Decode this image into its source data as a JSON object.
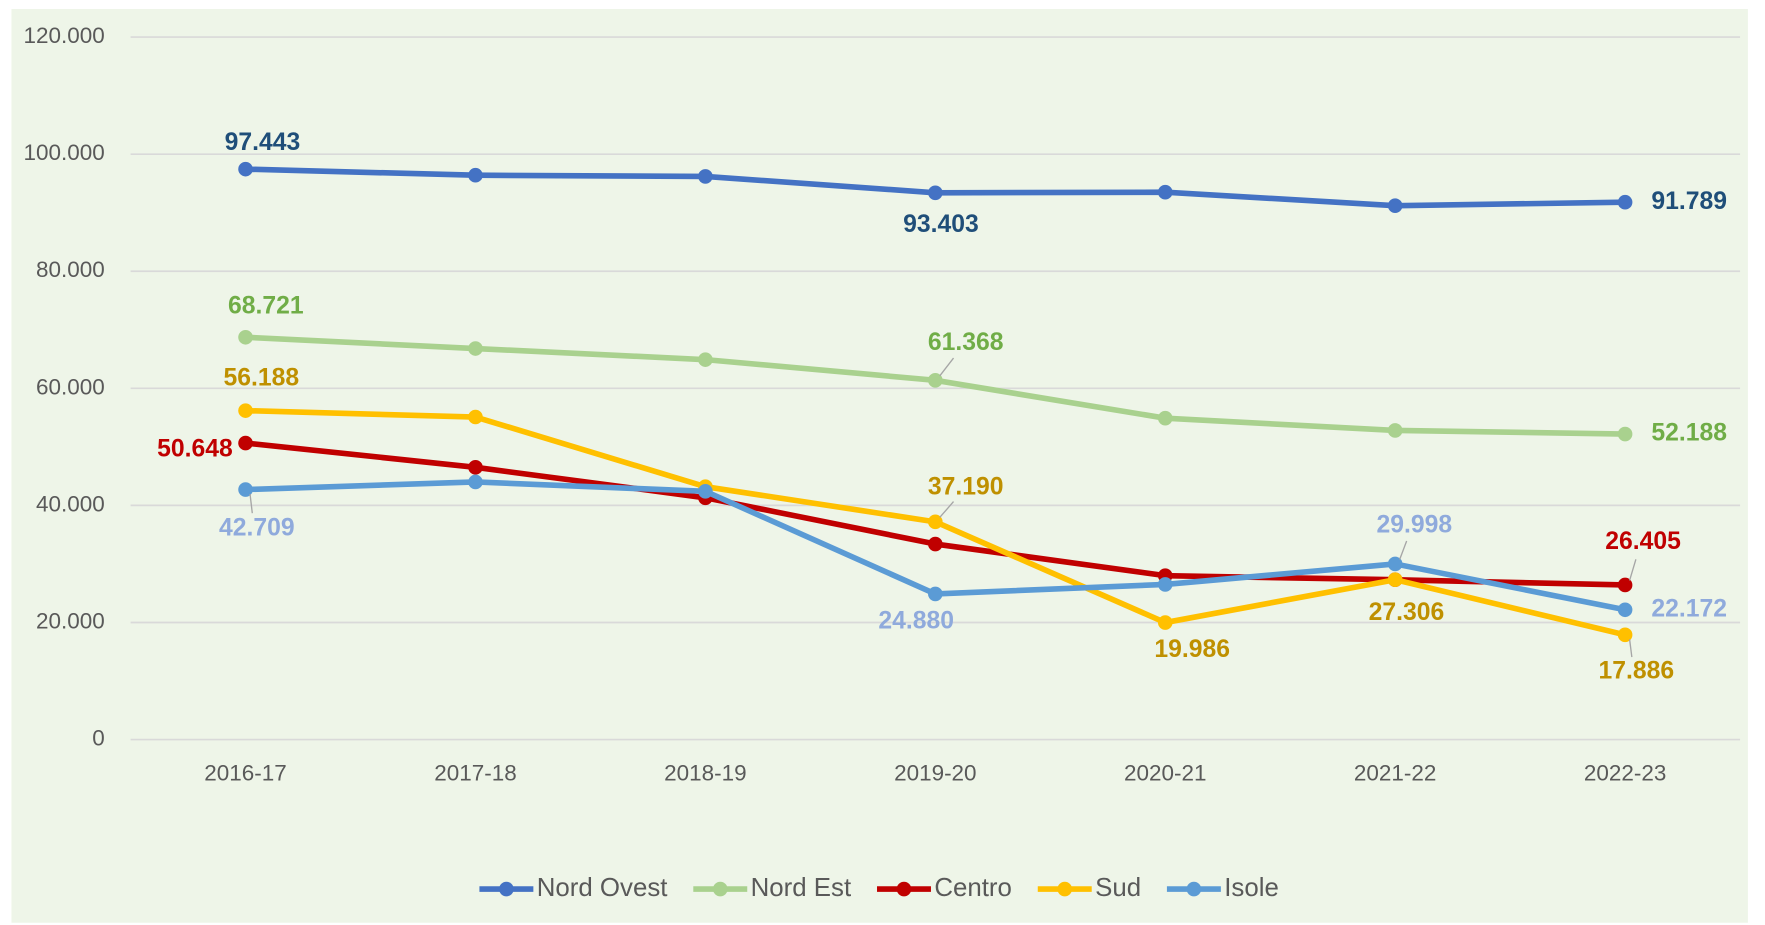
{
  "chart_data": {
    "type": "line",
    "categories": [
      "2016-17",
      "2017-18",
      "2018-19",
      "2019-20",
      "2020-21",
      "2021-22",
      "2022-23"
    ],
    "ylim": [
      0,
      120000
    ],
    "yticks": [
      0,
      {
        "value": 20000,
        "label": "20.000"
      },
      {
        "value": 40000,
        "label": "40.000"
      },
      {
        "value": 60000,
        "label": "60.000"
      },
      {
        "value": 80000,
        "label": "80.000"
      },
      {
        "value": 100000,
        "label": "100.000"
      },
      {
        "value": 120000,
        "label": "120.000"
      }
    ],
    "grid": true,
    "legend": "bottom",
    "series": [
      {
        "name": "Nord Ovest",
        "color": "#4472c4",
        "label_color": "#1f4e79",
        "values": [
          97443,
          96400,
          96200,
          93403,
          93500,
          91200,
          91789
        ],
        "value_labels": [
          "97.443",
          null,
          null,
          "93.403",
          null,
          null,
          "91.789"
        ]
      },
      {
        "name": "Nord Est",
        "color": "#a9d18e",
        "label_color": "#70ad47",
        "values": [
          68721,
          66800,
          64900,
          61368,
          54900,
          52800,
          52188
        ],
        "value_labels": [
          "68.721",
          null,
          null,
          "61.368",
          null,
          null,
          "52.188"
        ]
      },
      {
        "name": "Centro",
        "color": "#c00000",
        "label_color": "#c00000",
        "values": [
          50648,
          46500,
          41300,
          33400,
          28000,
          27300,
          26405
        ],
        "value_labels": [
          "50.648",
          null,
          null,
          null,
          null,
          null,
          "26.405"
        ]
      },
      {
        "name": "Sud",
        "color": "#ffc000",
        "label_color": "#bf9000",
        "values": [
          56188,
          55100,
          43200,
          37190,
          19986,
          27306,
          17886
        ],
        "value_labels": [
          "56.188",
          null,
          null,
          "37.190",
          "19.986",
          "27.306",
          "17.886"
        ]
      },
      {
        "name": "Isole",
        "color": "#5b9bd5",
        "label_color": "#8faadc",
        "values": [
          42709,
          44000,
          42400,
          24880,
          26500,
          29998,
          22172
        ],
        "value_labels": [
          "42.709",
          null,
          null,
          "24.880",
          null,
          "29.998",
          "22.172"
        ]
      }
    ]
  }
}
